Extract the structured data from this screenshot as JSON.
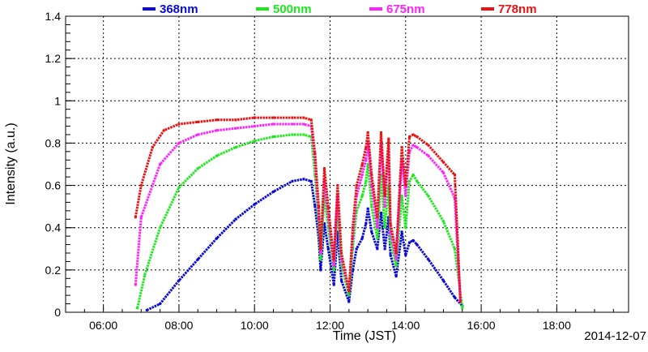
{
  "chart_data": {
    "type": "scatter",
    "title": "",
    "xlabel": "Time (JST)",
    "ylabel": "Intensity (a.u.)",
    "date_label": "2014-12-07",
    "xlim_hours": [
      5.0,
      19.9
    ],
    "ylim": [
      0,
      1.4
    ],
    "grid": true,
    "legend_position": "top",
    "x_ticks": [
      {
        "value": 6,
        "label": "06:00"
      },
      {
        "value": 8,
        "label": "08:00"
      },
      {
        "value": 10,
        "label": "10:00"
      },
      {
        "value": 12,
        "label": "12:00"
      },
      {
        "value": 14,
        "label": "14:00"
      },
      {
        "value": 16,
        "label": "16:00"
      },
      {
        "value": 18,
        "label": "18:00"
      }
    ],
    "y_ticks": [
      {
        "value": 0,
        "label": "0"
      },
      {
        "value": 0.2,
        "label": "0.2"
      },
      {
        "value": 0.4,
        "label": "0.4"
      },
      {
        "value": 0.6,
        "label": "0.6"
      },
      {
        "value": 0.8,
        "label": "0.8"
      },
      {
        "value": 1.0,
        "label": "1"
      },
      {
        "value": 1.2,
        "label": "1.2"
      },
      {
        "value": 1.4,
        "label": "1.4"
      }
    ],
    "series": [
      {
        "name": "368nm",
        "color": "#0a0ad8",
        "x_hours": [
          7.15,
          7.5,
          8.0,
          8.5,
          9.0,
          9.5,
          10.0,
          10.5,
          11.0,
          11.3,
          11.5,
          11.6,
          11.7,
          11.75,
          11.85,
          11.95,
          12.1,
          12.2,
          12.3,
          12.5,
          12.6,
          12.7,
          12.85,
          12.95,
          13.0,
          13.1,
          13.25,
          13.35,
          13.45,
          13.55,
          13.6,
          13.75,
          13.9,
          14.0,
          14.1,
          14.2,
          14.3,
          14.6,
          15.0,
          15.3,
          15.5
        ],
        "y": [
          0.01,
          0.04,
          0.15,
          0.25,
          0.35,
          0.44,
          0.51,
          0.57,
          0.62,
          0.63,
          0.62,
          0.5,
          0.35,
          0.2,
          0.42,
          0.3,
          0.13,
          0.38,
          0.15,
          0.05,
          0.2,
          0.3,
          0.35,
          0.42,
          0.49,
          0.38,
          0.3,
          0.47,
          0.3,
          0.45,
          0.27,
          0.17,
          0.38,
          0.27,
          0.33,
          0.34,
          0.32,
          0.25,
          0.15,
          0.07,
          0.03
        ]
      },
      {
        "name": "500nm",
        "color": "#1ee81e",
        "x_hours": [
          6.9,
          7.1,
          7.5,
          8.0,
          8.5,
          9.0,
          9.5,
          10.0,
          10.5,
          11.0,
          11.3,
          11.5,
          11.6,
          11.7,
          11.75,
          11.85,
          11.95,
          12.1,
          12.2,
          12.3,
          12.5,
          12.6,
          12.7,
          12.85,
          12.95,
          13.0,
          13.1,
          13.25,
          13.35,
          13.45,
          13.55,
          13.6,
          13.75,
          13.9,
          14.0,
          14.1,
          14.2,
          14.3,
          14.6,
          15.0,
          15.3,
          15.5
        ],
        "y": [
          0.02,
          0.18,
          0.4,
          0.59,
          0.68,
          0.74,
          0.78,
          0.81,
          0.83,
          0.84,
          0.84,
          0.83,
          0.65,
          0.4,
          0.25,
          0.55,
          0.4,
          0.2,
          0.5,
          0.22,
          0.08,
          0.3,
          0.48,
          0.55,
          0.62,
          0.7,
          0.5,
          0.35,
          0.65,
          0.4,
          0.6,
          0.33,
          0.22,
          0.55,
          0.4,
          0.62,
          0.65,
          0.62,
          0.55,
          0.43,
          0.3,
          0.02
        ]
      },
      {
        "name": "675nm",
        "color": "#ff22ff",
        "x_hours": [
          6.85,
          7.0,
          7.5,
          8.0,
          8.5,
          9.0,
          9.5,
          10.0,
          10.5,
          11.0,
          11.3,
          11.5,
          11.6,
          11.7,
          11.75,
          11.85,
          11.95,
          12.1,
          12.2,
          12.3,
          12.5,
          12.6,
          12.7,
          12.85,
          12.95,
          13.0,
          13.1,
          13.25,
          13.35,
          13.45,
          13.55,
          13.6,
          13.75,
          13.9,
          14.0,
          14.1,
          14.2,
          14.3,
          14.6,
          15.0,
          15.3,
          15.45
        ],
        "y": [
          0.13,
          0.45,
          0.7,
          0.8,
          0.84,
          0.86,
          0.87,
          0.88,
          0.89,
          0.89,
          0.89,
          0.88,
          0.72,
          0.45,
          0.28,
          0.62,
          0.45,
          0.22,
          0.55,
          0.25,
          0.1,
          0.35,
          0.55,
          0.65,
          0.72,
          0.8,
          0.6,
          0.4,
          0.8,
          0.5,
          0.8,
          0.38,
          0.25,
          0.72,
          0.55,
          0.76,
          0.79,
          0.78,
          0.74,
          0.66,
          0.54,
          0.05
        ]
      },
      {
        "name": "778nm",
        "color": "#ee1111",
        "x_hours": [
          6.85,
          7.0,
          7.3,
          7.6,
          8.0,
          8.5,
          9.0,
          9.5,
          10.0,
          10.5,
          11.0,
          11.3,
          11.5,
          11.6,
          11.7,
          11.75,
          11.85,
          11.95,
          12.1,
          12.2,
          12.3,
          12.5,
          12.6,
          12.7,
          12.85,
          12.95,
          13.0,
          13.1,
          13.25,
          13.35,
          13.45,
          13.55,
          13.6,
          13.75,
          13.9,
          14.0,
          14.1,
          14.2,
          14.3,
          14.6,
          15.0,
          15.3,
          15.45
        ],
        "y": [
          0.45,
          0.6,
          0.78,
          0.86,
          0.89,
          0.9,
          0.91,
          0.91,
          0.92,
          0.92,
          0.92,
          0.92,
          0.91,
          0.75,
          0.5,
          0.3,
          0.68,
          0.5,
          0.25,
          0.6,
          0.28,
          0.1,
          0.4,
          0.6,
          0.7,
          0.78,
          0.85,
          0.65,
          0.45,
          0.85,
          0.55,
          0.82,
          0.42,
          0.28,
          0.78,
          0.6,
          0.83,
          0.84,
          0.83,
          0.79,
          0.71,
          0.65,
          0.05
        ]
      }
    ]
  }
}
